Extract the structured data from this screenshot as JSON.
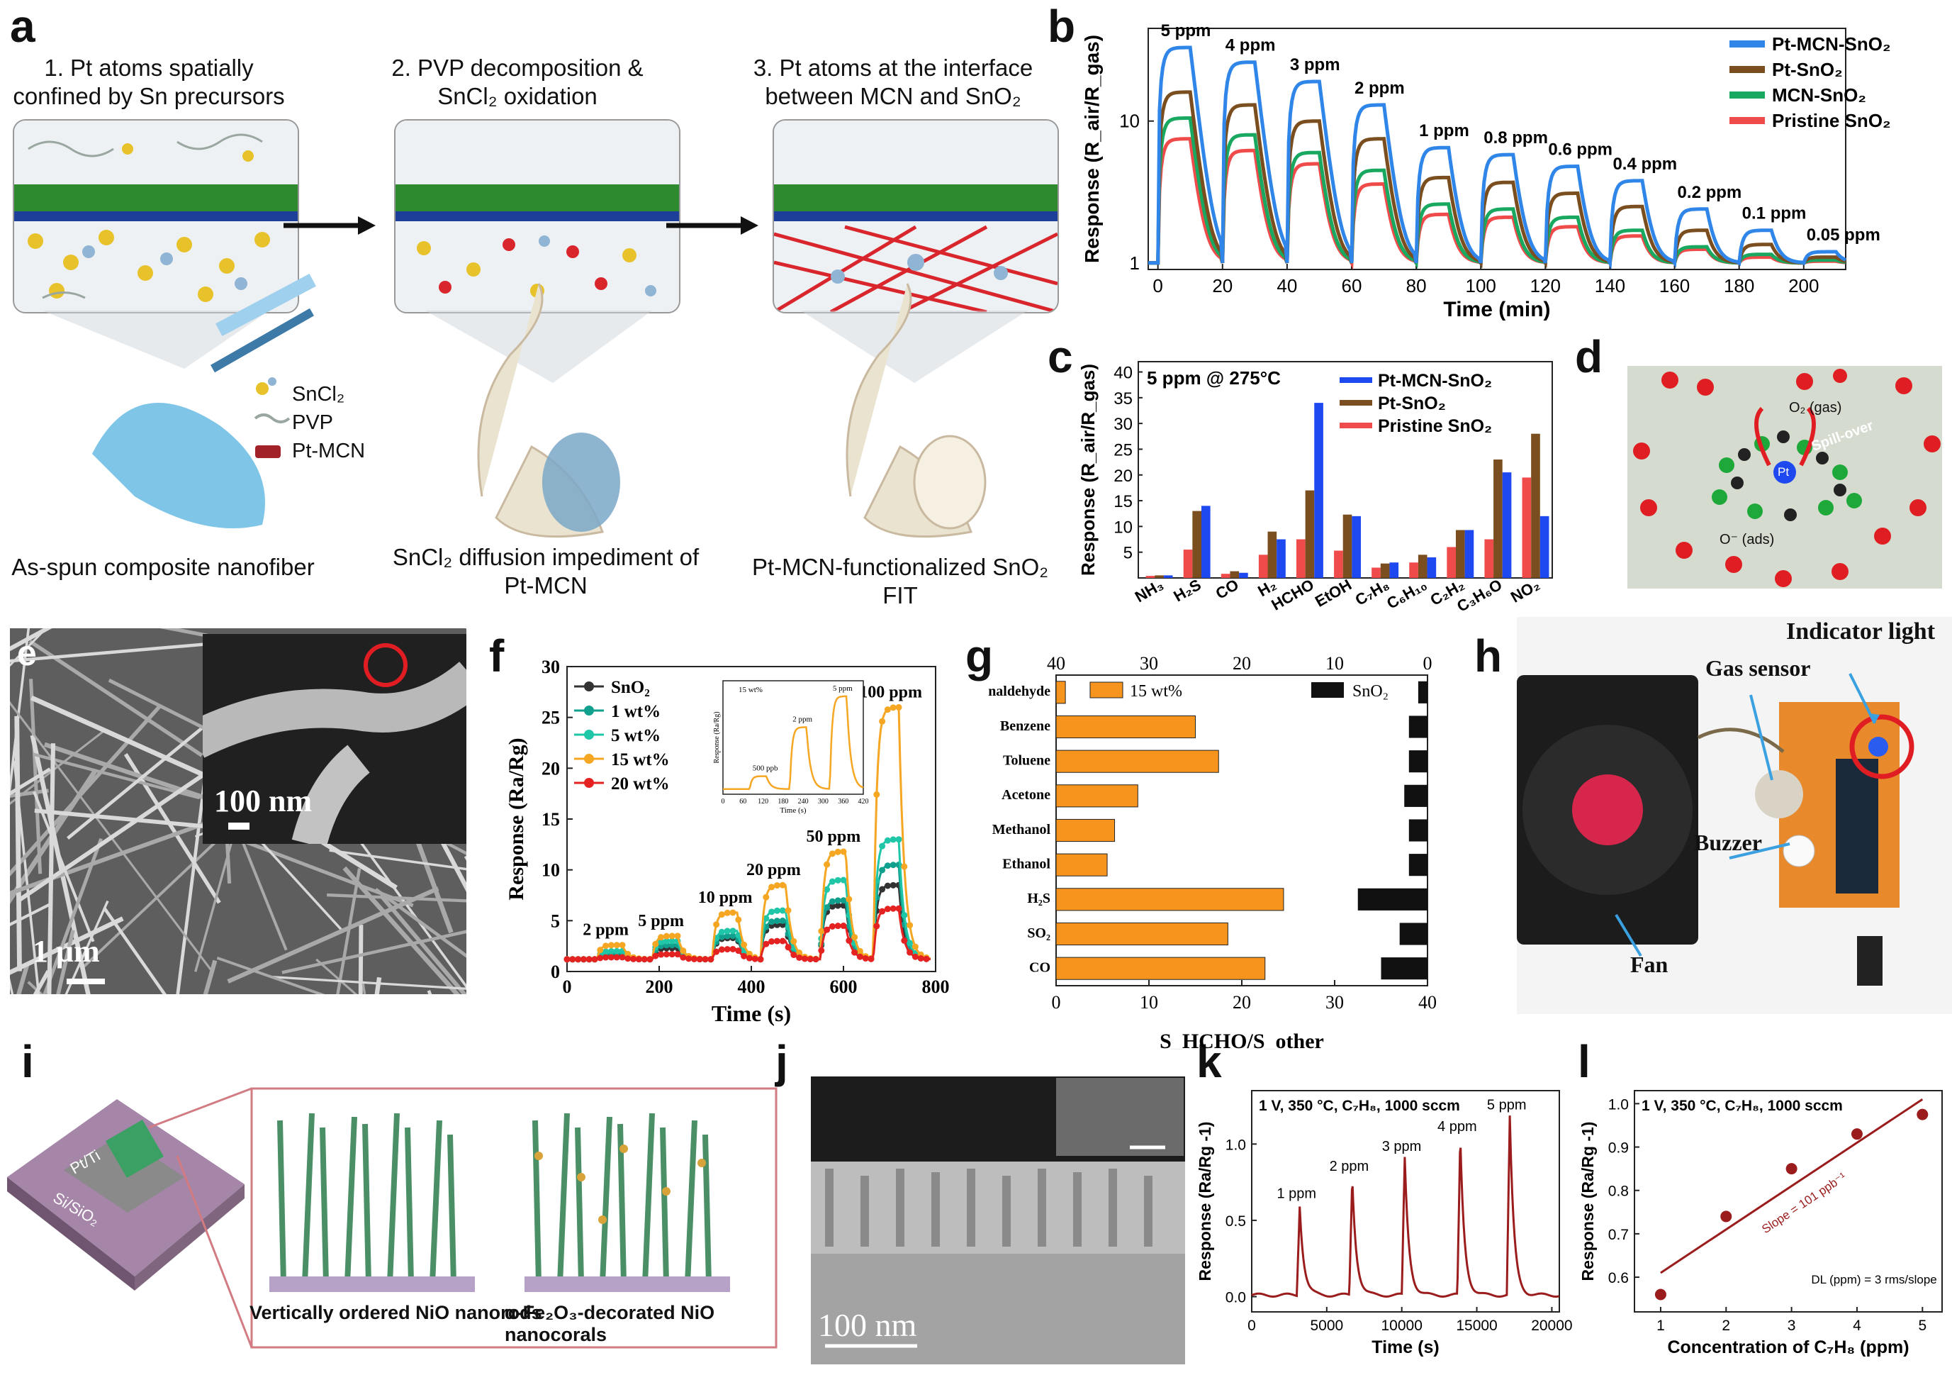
{
  "figure": {
    "labels": [
      "a",
      "b",
      "c",
      "d",
      "e",
      "f",
      "g",
      "h",
      "i",
      "j",
      "k",
      "l"
    ]
  },
  "panel_a": {
    "step1": "1. Pt atoms spatially confined by Sn precursors",
    "step2": "2. PVP decomposition & SnCl₂ oxidation",
    "step3": "3. Pt atoms at the interface between MCN and SnO₂",
    "legend": [
      "SnCl₂",
      "PVP",
      "Pt-MCN"
    ],
    "cap1": "As-spun composite nanofiber",
    "cap2": "SnCl₂ diffusion impediment of Pt-MCN",
    "cap3": "Pt-MCN-functionalized SnO₂ FIT"
  },
  "panel_d": {
    "o2_gas": "O₂ (gas)",
    "spill": "Spill-over",
    "pt": "Pt",
    "o_ads": "O⁻ (ads)"
  },
  "panel_e": {
    "scale_inset": "100 nm",
    "scale_main": "1 μm"
  },
  "panel_h": {
    "indicator": "Indicator  light",
    "gas_sensor": "Gas sensor",
    "buzzer": "Buzzer",
    "fan": "Fan"
  },
  "panel_i": {
    "chip_pt": "Pt/Ti",
    "chip_si": "Si/SiO₂",
    "cap_left": "Vertically ordered NiO nanorods",
    "cap_right": "α-Fe₂O₃-decorated NiO nanocorals"
  },
  "panel_j": {
    "scale": "100 nm"
  },
  "chart_data": [
    {
      "id": "b",
      "type": "line",
      "title": "",
      "xlabel": "Time (min)",
      "ylabel": "Response (R_air/R_gas)",
      "xlim": [
        -3,
        213
      ],
      "ylim": [
        0.9,
        45
      ],
      "yscale": "log",
      "xticks": [
        0,
        20,
        40,
        60,
        80,
        100,
        120,
        140,
        160,
        180,
        200
      ],
      "yticks": [
        1,
        10
      ],
      "pulse_starts": [
        0,
        20,
        40,
        60,
        80,
        100,
        120,
        140,
        160,
        180,
        200
      ],
      "pulse_length": 10,
      "pulse_labels": [
        "5 ppm",
        "4 ppm",
        "3 ppm",
        "2 ppm",
        "1 ppm",
        "0.8 ppm",
        "0.6 ppm",
        "0.4 ppm",
        "0.2 ppm",
        "0.1 ppm",
        "0.05 ppm"
      ],
      "series": [
        {
          "name": "Pt-MCN-SnO₂",
          "color": "#2f86e8",
          "peaks": [
            33,
            26,
            19,
            13,
            6.5,
            5.8,
            4.8,
            3.8,
            2.4,
            1.7,
            1.2
          ]
        },
        {
          "name": "Pt-SnO₂",
          "color": "#7a4e1e",
          "peaks": [
            16,
            13,
            10,
            7.5,
            4.0,
            3.7,
            3.1,
            2.5,
            1.7,
            1.35,
            1.1
          ]
        },
        {
          "name": "MCN-SnO₂",
          "color": "#18a860",
          "peaks": [
            10.5,
            8.0,
            6.0,
            4.5,
            2.6,
            2.4,
            2.1,
            1.7,
            1.3,
            1.15,
            1.05
          ]
        },
        {
          "name": "Pristine SnO₂",
          "color": "#f04b4b",
          "peaks": [
            7.5,
            6.2,
            5.0,
            3.6,
            2.2,
            2.1,
            1.8,
            1.55,
            1.25,
            1.1,
            1.03
          ]
        }
      ]
    },
    {
      "id": "c",
      "type": "bar",
      "title": "5 ppm @ 275°C",
      "xlabel": "",
      "ylabel": "Response (R_air/R_gas)",
      "ylim": [
        0,
        42
      ],
      "yticks": [
        5,
        10,
        15,
        20,
        25,
        30,
        35,
        40
      ],
      "categories": [
        "NH₃",
        "H₂S",
        "CO",
        "H₂",
        "HCHO",
        "EtOH",
        "C₇H₈",
        "C₆H₁₀",
        "C₂H₂",
        "C₃H₆O",
        "NO₂"
      ],
      "series": [
        {
          "name": "Pristine SnO₂",
          "color": "#f04b4b",
          "values": [
            0.4,
            5.5,
            0.8,
            4.5,
            7.5,
            5.3,
            2.0,
            3.0,
            6.0,
            7.5,
            19.5
          ]
        },
        {
          "name": "Pt-SnO₂",
          "color": "#7a4e1e",
          "values": [
            0.5,
            13.0,
            1.3,
            9.0,
            17.0,
            12.3,
            2.8,
            4.5,
            9.3,
            23.0,
            28.0
          ]
        },
        {
          "name": "Pt-MCN-SnO₂",
          "color": "#1f49f0",
          "values": [
            0.5,
            14.0,
            1.0,
            7.5,
            34.0,
            12.0,
            3.0,
            4.0,
            9.3,
            20.5,
            12.0
          ]
        }
      ]
    },
    {
      "id": "f",
      "type": "line",
      "title": "",
      "xlabel": "Time (s)",
      "ylabel": "Response (Ra/Rg)",
      "xlim": [
        0,
        800
      ],
      "ylim": [
        0,
        30
      ],
      "xticks": [
        0,
        200,
        400,
        600,
        800
      ],
      "yticks": [
        0,
        5,
        10,
        15,
        20,
        25,
        30
      ],
      "pulse_starts": [
        65,
        185,
        315,
        420,
        550,
        665
      ],
      "pulse_length": 55,
      "pulse_labels": [
        "2 ppm",
        "5 ppm",
        "10 ppm",
        "20 ppm",
        "50 ppm",
        "100 ppm"
      ],
      "series": [
        {
          "name": "SnO₂",
          "color": "#333333",
          "peaks": [
            1.6,
            2.3,
            3.3,
            4.6,
            6.5,
            8.5
          ]
        },
        {
          "name": "1 wt%",
          "color": "#12a08e",
          "peaks": [
            1.8,
            2.6,
            3.5,
            5.0,
            7.0,
            10.5
          ]
        },
        {
          "name": "5 wt%",
          "color": "#1fc7a8",
          "peaks": [
            2.0,
            3.0,
            4.0,
            6.0,
            9.0,
            13.0
          ]
        },
        {
          "name": "15 wt%",
          "color": "#f5a623",
          "peaks": [
            2.6,
            3.5,
            5.8,
            8.5,
            11.8,
            26.0
          ]
        },
        {
          "name": "20 wt%",
          "color": "#e52222",
          "peaks": [
            1.4,
            1.7,
            2.2,
            3.0,
            4.5,
            6.2
          ]
        }
      ],
      "inset": {
        "xlabel": "Time (s)",
        "ylabel": "Response (Ra/Rg)",
        "xticks": [
          0,
          60,
          120,
          180,
          240,
          300,
          360,
          420
        ],
        "xlim": [
          0,
          420
        ],
        "legend": "15 wt%",
        "pulse_labels": [
          "500 ppb",
          "2 ppm",
          "5 ppm"
        ],
        "pulse_starts": [
          80,
          200,
          320
        ],
        "pulse_length": 50,
        "peaks": [
          1.25,
          2.2,
          2.8
        ],
        "ylim": [
          0.9,
          3.1
        ]
      }
    },
    {
      "id": "g",
      "type": "bar",
      "title": "",
      "xlabel": "S_HCHO/S_other",
      "xlim": [
        0,
        40
      ],
      "xticks": [
        0,
        10,
        20,
        30,
        40
      ],
      "top_xticks": [
        40,
        30,
        20,
        10,
        0
      ],
      "categories": [
        "naldehyde",
        "Benzene",
        "Toluene",
        "Acetone",
        "Methanol",
        "Ethanol",
        "H₂S",
        "SO₂",
        "CO"
      ],
      "series": [
        {
          "name": "15 wt%",
          "color": "#f7941d",
          "values": [
            1,
            15,
            17.5,
            8.8,
            6.3,
            5.5,
            24.5,
            18.5,
            22.5
          ]
        },
        {
          "name": "SnO₂",
          "color": "#111111",
          "values": [
            1,
            2,
            2,
            2.5,
            2,
            2,
            7.5,
            3,
            5
          ]
        }
      ]
    },
    {
      "id": "k",
      "type": "line",
      "title": "1 V, 350 °C, C₇H₈, 1000 sccm",
      "xlabel": "Time (s)",
      "ylabel": "Response (Ra/Rg -1)",
      "xlim": [
        0,
        20500
      ],
      "ylim": [
        -0.1,
        1.35
      ],
      "xticks": [
        0,
        5000,
        10000,
        15000,
        20000
      ],
      "yticks": [
        0.0,
        0.5,
        1.0
      ],
      "pulse_starts": [
        3000,
        6500,
        10000,
        13700,
        17000
      ],
      "pulse_labels": [
        "1 ppm",
        "2 ppm",
        "3 ppm",
        "4 ppm",
        "5 ppm"
      ],
      "series": [
        {
          "name": "C₇H₈",
          "color": "#9b1c1c",
          "peaks": [
            0.59,
            0.77,
            0.9,
            1.03,
            1.17
          ]
        }
      ]
    },
    {
      "id": "l",
      "type": "scatter",
      "title": "1 V, 350 °C, C₇H₈, 1000 sccm",
      "xlabel": "Concentration of C₇H₈ (ppm)",
      "ylabel": "Response (Ra/Rg -1)",
      "xlim": [
        0.6,
        5.3
      ],
      "ylim": [
        0.52,
        1.03
      ],
      "xticks": [
        1,
        2,
        3,
        4,
        5
      ],
      "yticks": [
        0.6,
        0.7,
        0.8,
        0.9,
        1.0
      ],
      "x": [
        1,
        2,
        3,
        4,
        5
      ],
      "y": [
        0.56,
        0.74,
        0.85,
        0.93,
        0.975
      ],
      "fit": {
        "x": [
          1,
          5
        ],
        "y": [
          0.61,
          1.01
        ]
      },
      "annotation_slope": "Slope = 101 ppb⁻¹",
      "annotation_dl": "DL (ppm) = 3 rms/slope",
      "color": "#9b1c1c"
    }
  ]
}
